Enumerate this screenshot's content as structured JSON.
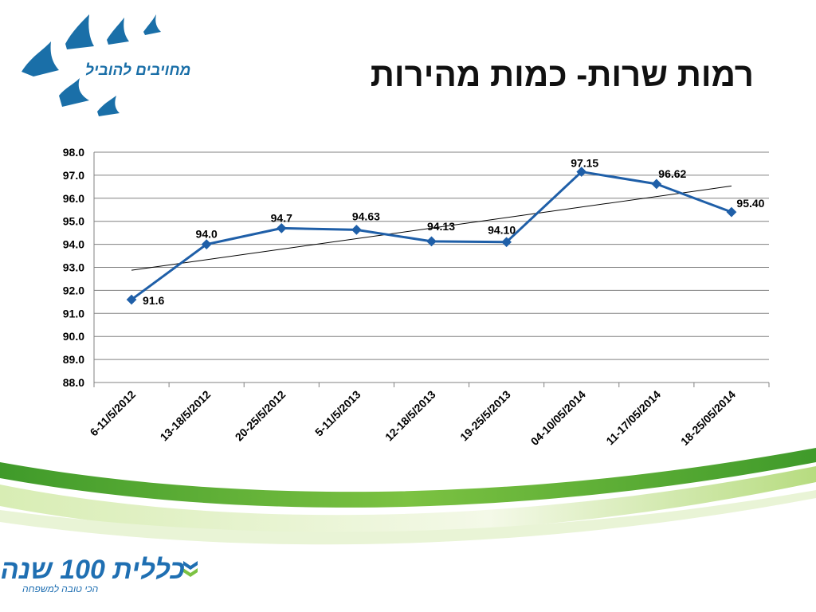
{
  "slide": {
    "title": "רמות שרות- כמות מהירות"
  },
  "top_logo": {
    "text": "מחויבים להוביל",
    "icon": "birds-logo-icon",
    "color": "#1a6fa8"
  },
  "bottom_logo": {
    "main_text": "כללית 100 שנה",
    "sub_text": "הכי טובה למשפחה",
    "icon": "clalit-logo-icon",
    "color": "#1f6fb2"
  },
  "colors": {
    "series_line": "#1f5fa8",
    "trend_line": "#000000",
    "grid": "#808080",
    "wave_green": "#5db82e",
    "wave_light": "#cde7a6"
  },
  "chart_data": {
    "type": "line",
    "title": "",
    "xlabel": "",
    "ylabel": "",
    "categories": [
      "6-11/5/2012",
      "13-18/5/2012",
      "20-25/5/2012",
      "5-11/5/2013",
      "12-18/5/2013",
      "19-25/5/2013",
      "04-10/05/2014",
      "11-17/05/2014",
      "18-25/05/2014"
    ],
    "series": [
      {
        "values": [
          91.6,
          94.0,
          94.7,
          94.63,
          94.13,
          94.1,
          97.15,
          96.62,
          95.4
        ],
        "labels": [
          "91.6",
          "94.0",
          "94.7",
          "94.63",
          "94.13",
          "94.10",
          "97.15",
          "96.62",
          "95.40"
        ]
      }
    ],
    "trendline": "linear",
    "ylim": [
      88.0,
      98.0
    ],
    "yticks": [
      "88.0",
      "89.0",
      "90.0",
      "91.0",
      "92.0",
      "93.0",
      "94.0",
      "95.0",
      "96.0",
      "97.0",
      "98.0"
    ],
    "grid": true,
    "legend": "none"
  }
}
